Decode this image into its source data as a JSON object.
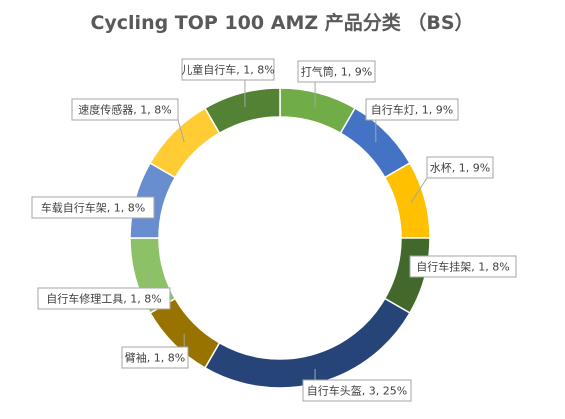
{
  "chart_data": {
    "type": "pie",
    "title": "Cycling TOP 100 AMZ 产品分类 （BS）",
    "donut": true,
    "start_angle_deg": 0,
    "legend": "none",
    "labels_show": "category, value, percent",
    "slices": [
      {
        "name": "打气筒",
        "value": 1,
        "percent": "9%",
        "label": "打气筒, 1, 9%",
        "color": "#70ad47"
      },
      {
        "name": "自行车灯",
        "value": 1,
        "percent": "9%",
        "label": "自行车灯, 1, 9%",
        "color": "#4472c4"
      },
      {
        "name": "水杯",
        "value": 1,
        "percent": "9%",
        "label": "水杯, 1, 9%",
        "color": "#ffc000"
      },
      {
        "name": "自行车挂架",
        "value": 1,
        "percent": "8%",
        "label": "自行车挂架, 1, 8%",
        "color": "#43682b"
      },
      {
        "name": "自行车头盔",
        "value": 3,
        "percent": "25%",
        "label": "自行车头盔, 3, 25%",
        "color": "#264478"
      },
      {
        "name": "臂袖",
        "value": 1,
        "percent": "8%",
        "label": "臂袖, 1, 8%",
        "color": "#997300"
      },
      {
        "name": "自行车修理工具",
        "value": 1,
        "percent": "8%",
        "label": "自行车修理工具, 1, 8%",
        "color": "#8cc168"
      },
      {
        "name": "车载自行车架",
        "value": 1,
        "percent": "8%",
        "label": "车载自行车架, 1, 8%",
        "color": "#698ed0"
      },
      {
        "name": "速度传感器",
        "value": 1,
        "percent": "8%",
        "label": "速度传感器, 1, 8%",
        "color": "#ffcd33"
      },
      {
        "name": "儿童自行车",
        "value": 1,
        "percent": "8%",
        "label": "儿童自行车, 1, 8%",
        "color": "#548235"
      }
    ]
  }
}
